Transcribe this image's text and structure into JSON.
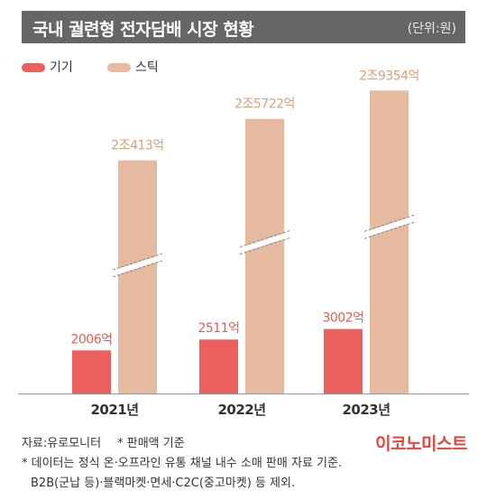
{
  "header": {
    "title": "국내 궐련형 전자담배 시장 현황",
    "unit": "(단위:원)"
  },
  "colors": {
    "device": "#eb5f5f",
    "stick": "#e6baa1",
    "device_label": "#ea5a50",
    "stick_label": "#e09e78",
    "brand": "#e8443a"
  },
  "chart_data": {
    "type": "bar",
    "categories": [
      "2021년",
      "2022년",
      "2023년"
    ],
    "series": [
      {
        "name": "기기",
        "values": [
          2006,
          2511,
          3002
        ],
        "labels": [
          "2006억",
          "2511억",
          "3002억"
        ]
      },
      {
        "name": "스틱",
        "values": [
          20413,
          25722,
          29354
        ],
        "labels": [
          "2조413억",
          "2조5722억",
          "2조9354억"
        ]
      }
    ],
    "axis_break": true,
    "grid": false,
    "legend": "top-left"
  },
  "footer": {
    "source": "자료:유로모니터",
    "note_short": "* 판매액 기준",
    "note_line1": "* 데이터는 정식 온·오프라인 유통 채널 내수 소매 판매 자료 기준.",
    "note_line2": "B2B(군납 등)·블랙마켓·면세·C2C(중고마켓) 등 제외."
  },
  "brand": "이코노미스트"
}
